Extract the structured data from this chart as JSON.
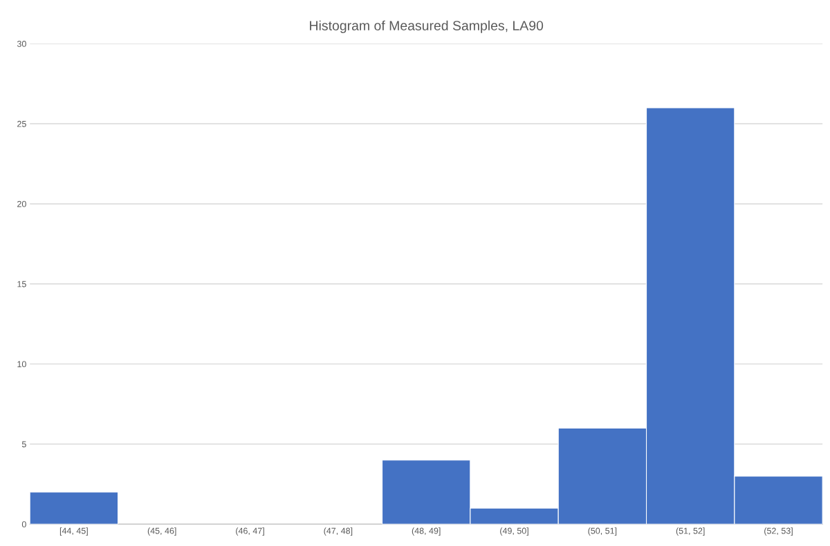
{
  "chart_data": {
    "type": "bar",
    "title": "Histogram of Measured Samples, LA90",
    "categories": [
      "[44, 45]",
      "(45, 46]",
      "(46, 47]",
      "(47, 48]",
      "(48, 49]",
      "(49, 50]",
      "(50, 51]",
      "(51, 52]",
      "(52, 53]"
    ],
    "values": [
      2,
      0,
      0,
      0,
      4,
      1,
      6,
      26,
      3
    ],
    "color": "#4472c4",
    "ylim": [
      0,
      30
    ],
    "yticks": [
      0,
      5,
      10,
      15,
      20,
      25,
      30
    ],
    "grid": "y"
  }
}
